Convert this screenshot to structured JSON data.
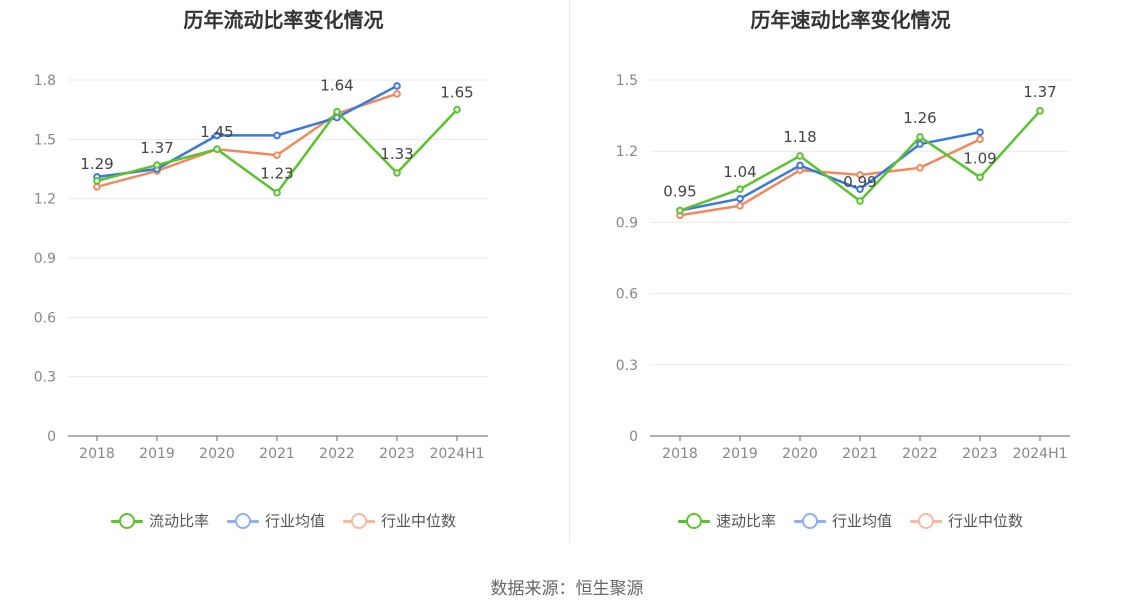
{
  "chart_data": [
    {
      "type": "line",
      "title": "历年流动比率变化情况",
      "categories": [
        "2018",
        "2019",
        "2020",
        "2021",
        "2022",
        "2023",
        "2024H1"
      ],
      "yticks": [
        "0",
        "0.3",
        "0.6",
        "0.9",
        "1.2",
        "1.5",
        "1.8"
      ],
      "ylim": [
        0,
        1.8
      ],
      "grid": true,
      "legend_position": "bottom",
      "series": [
        {
          "name": "流动比率",
          "color": "#5cc32e",
          "values": [
            1.29,
            1.37,
            1.45,
            1.23,
            1.64,
            1.33,
            1.65
          ],
          "data_labels": [
            "1.29",
            "1.37",
            "1.45",
            "1.23",
            "1.64",
            "1.33",
            "1.65"
          ]
        },
        {
          "name": "行业均值",
          "color": "#3a78dd",
          "values": [
            1.31,
            1.35,
            1.52,
            1.52,
            1.61,
            1.77,
            null
          ]
        },
        {
          "name": "行业中位数",
          "color": "#f08a5d",
          "values": [
            1.26,
            1.34,
            1.45,
            1.42,
            1.63,
            1.73,
            null
          ]
        }
      ]
    },
    {
      "type": "line",
      "title": "历年速动比率变化情况",
      "categories": [
        "2018",
        "2019",
        "2020",
        "2021",
        "2022",
        "2023",
        "2024H1"
      ],
      "yticks": [
        "0",
        "0.3",
        "0.6",
        "0.9",
        "1.2",
        "1.5"
      ],
      "ylim": [
        0,
        1.5
      ],
      "grid": true,
      "legend_position": "bottom",
      "series": [
        {
          "name": "速动比率",
          "color": "#5cc32e",
          "values": [
            0.95,
            1.04,
            1.18,
            0.99,
            1.26,
            1.09,
            1.37
          ],
          "data_labels": [
            "0.95",
            "1.04",
            "1.18",
            "0.99",
            "1.26",
            "1.09",
            "1.37"
          ]
        },
        {
          "name": "行业均值",
          "color": "#3a78dd",
          "values": [
            0.95,
            1.0,
            1.14,
            1.04,
            1.23,
            1.28,
            null
          ]
        },
        {
          "name": "行业中位数",
          "color": "#f08a5d",
          "values": [
            0.93,
            0.97,
            1.12,
            1.1,
            1.13,
            1.25,
            null
          ]
        }
      ]
    }
  ],
  "legend_colors": {
    "main": "#5cc32e",
    "avg": "#8fb0ee",
    "median": "#f7b9a0"
  },
  "source": "数据来源：恒生聚源"
}
